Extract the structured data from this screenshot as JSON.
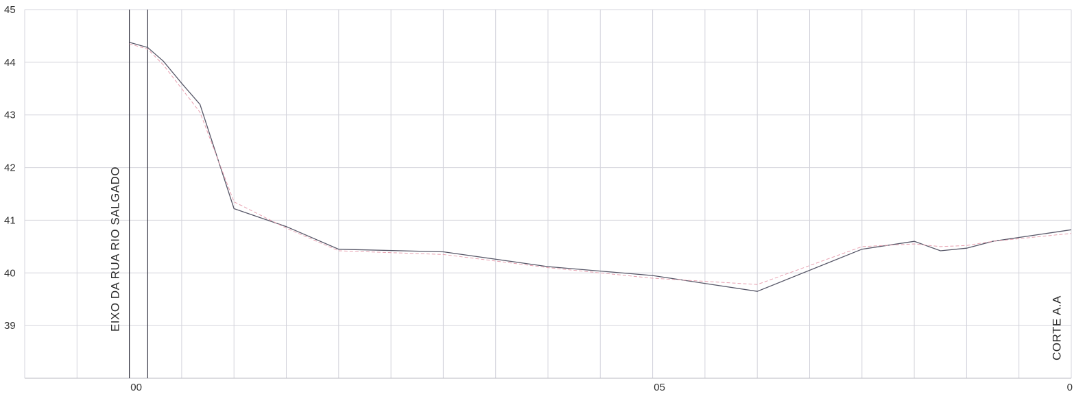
{
  "chart_data": {
    "type": "line",
    "title": "",
    "xlabel": "",
    "ylabel": "",
    "xlim": [
      -20,
      180
    ],
    "ylim": [
      38,
      45
    ],
    "grid": true,
    "y_ticks": [
      39,
      40,
      41,
      42,
      43,
      44,
      45
    ],
    "y_tick_labels": [
      "39",
      "40",
      "41",
      "42",
      "43",
      "44",
      "45"
    ],
    "x_ticks": [
      0,
      100,
      180
    ],
    "x_tick_labels": [
      "00",
      "05",
      "0"
    ],
    "x_grid_step": 10,
    "series": [
      {
        "color": "#555566",
        "x": [
          0,
          3.5,
          6.5,
          10,
          13.5,
          20,
          30,
          40,
          60,
          80,
          100,
          120,
          140,
          150,
          155,
          160,
          165,
          180
        ],
        "y": [
          44.38,
          44.28,
          44.02,
          43.6,
          43.2,
          41.22,
          40.88,
          40.45,
          40.4,
          40.12,
          39.95,
          39.65,
          40.45,
          40.6,
          40.42,
          40.47,
          40.6,
          40.82
        ]
      },
      {
        "color": "#e8a0b0",
        "style": "dashed",
        "x": [
          0,
          3.5,
          6.5,
          10,
          13.5,
          20,
          30,
          40,
          60,
          80,
          100,
          120,
          140,
          150,
          155,
          160,
          165,
          180
        ],
        "y": [
          44.35,
          44.25,
          43.95,
          43.5,
          43.05,
          41.35,
          40.85,
          40.42,
          40.35,
          40.1,
          39.9,
          39.78,
          40.5,
          40.55,
          40.5,
          40.52,
          40.6,
          40.75
        ]
      }
    ],
    "vertical_lines": [
      {
        "x": 0,
        "label": ""
      },
      {
        "x": 3.5,
        "label": ""
      }
    ],
    "annotations": [
      {
        "text": "EIXO DA RUA  RIO SALGADO",
        "x": -2
      },
      {
        "text": "CORTE  A.A",
        "x": 178
      }
    ]
  }
}
